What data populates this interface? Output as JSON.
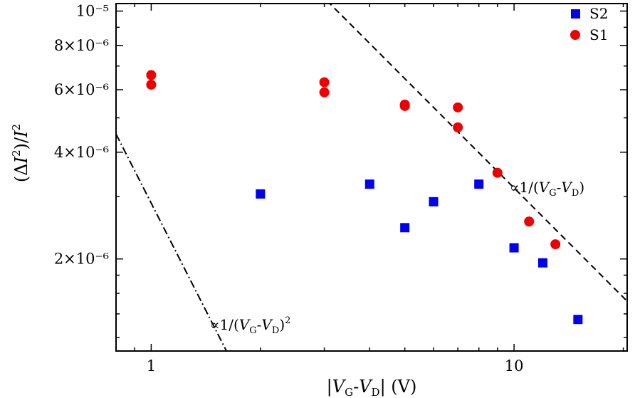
{
  "chart_data": {
    "type": "scatter",
    "x_scale": "log",
    "y_scale": "log",
    "xlim": [
      0.8,
      20.5
    ],
    "ylim": [
      1.1e-06,
      1.05e-05
    ],
    "xlabel": "|V_G-V_D| (V)",
    "ylabel": "(ΔI²)/I²",
    "x_ticks": [
      {
        "value": 1,
        "label": "1"
      },
      {
        "value": 10,
        "label": "10"
      }
    ],
    "y_ticks": [
      {
        "value": 2e-06,
        "label": "2×10⁻⁶"
      },
      {
        "value": 4e-06,
        "label": "4×10⁻⁶"
      },
      {
        "value": 6e-06,
        "label": "6×10⁻⁶"
      },
      {
        "value": 8e-06,
        "label": "8×10⁻⁶"
      },
      {
        "value": 1e-05,
        "label": "10⁻⁵"
      }
    ],
    "legend_position": "top-right",
    "series": [
      {
        "name": "S2",
        "marker": "square",
        "color": "#0000ee",
        "x": [
          2,
          4,
          5,
          6,
          8,
          10,
          12,
          15
        ],
        "y": [
          3.05e-06,
          3.25e-06,
          2.45e-06,
          2.9e-06,
          3.25e-06,
          2.15e-06,
          1.95e-06,
          1.35e-06
        ]
      },
      {
        "name": "S1",
        "marker": "circle",
        "color": "#ee0000",
        "x": [
          1,
          1,
          3,
          3,
          5,
          5,
          7,
          7,
          9,
          11,
          13
        ],
        "y": [
          6.6e-06,
          6.2e-06,
          6.3e-06,
          5.9e-06,
          5.45e-06,
          5.4e-06,
          5.35e-06,
          4.7e-06,
          3.5e-06,
          2.55e-06,
          2.2e-06
        ]
      }
    ],
    "reference_lines": [
      {
        "label_parts": [
          "∝1/(",
          "V",
          "G",
          "-",
          "V",
          "D",
          ")"
        ],
        "style": "dashed",
        "x": [
          3.05,
          20.5
        ],
        "y": [
          1.07e-05,
          1.52e-06
        ]
      },
      {
        "label_parts": [
          "∝1/(",
          "V",
          "G",
          "-",
          "V",
          "D",
          ")",
          "2"
        ],
        "style": "dashdot",
        "x": [
          0.8,
          1.65
        ],
        "y": [
          4.5e-06,
          1.05e-06
        ]
      }
    ],
    "xlabel_parts": [
      "|",
      "V",
      "G",
      "-",
      "V",
      "D",
      "|",
      " (V)"
    ],
    "ylabel_parts": [
      "(Δ",
      "I",
      "2",
      ")/",
      "I",
      "2"
    ]
  }
}
